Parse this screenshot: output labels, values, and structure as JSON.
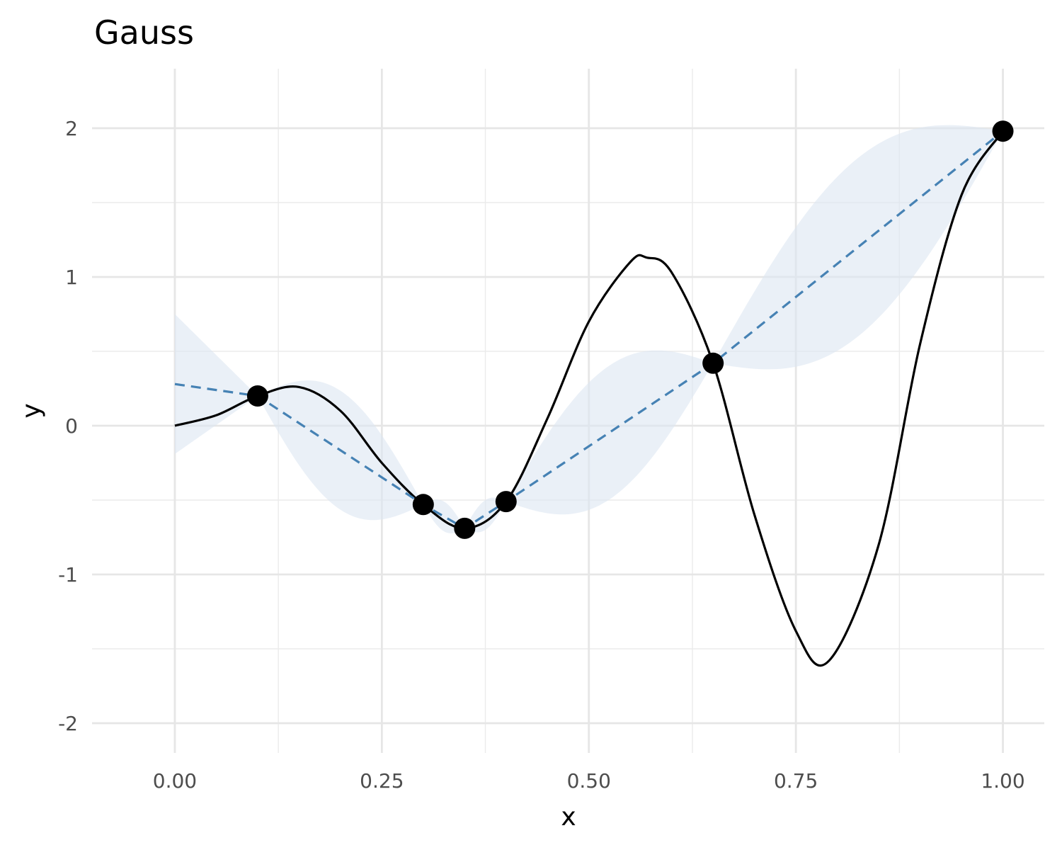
{
  "chart_data": {
    "type": "line",
    "title": "Gauss",
    "xlabel": "x",
    "ylabel": "y",
    "xlim": [
      -0.1,
      1.05
    ],
    "ylim": [
      -2.2,
      2.4
    ],
    "grid": true,
    "x_ticks": [
      0.0,
      0.25,
      0.5,
      0.75,
      1.0
    ],
    "x_tick_labels": [
      "0.00",
      "0.25",
      "0.50",
      "0.75",
      "1.00"
    ],
    "y_ticks": [
      -2,
      -1,
      0,
      1,
      2
    ],
    "y_tick_labels": [
      "-2",
      "-1",
      "0",
      "1",
      "2"
    ],
    "true_function": {
      "style": "solid",
      "color": "#000000",
      "x": [
        0.0,
        0.05,
        0.1,
        0.15,
        0.2,
        0.25,
        0.3,
        0.35,
        0.4,
        0.45,
        0.5,
        0.55,
        0.57,
        0.6,
        0.65,
        0.7,
        0.75,
        0.79,
        0.85,
        0.9,
        0.95,
        1.0
      ],
      "y": [
        0.0,
        0.07,
        0.2,
        0.26,
        0.1,
        -0.25,
        -0.53,
        -0.69,
        -0.51,
        0.05,
        0.7,
        1.1,
        1.13,
        1.03,
        0.42,
        -0.6,
        -1.38,
        -1.58,
        -0.8,
        0.55,
        1.55,
        1.98
      ]
    },
    "observations": {
      "x": [
        0.1,
        0.3,
        0.35,
        0.4,
        0.65,
        1.0
      ],
      "y": [
        0.2,
        -0.53,
        -0.69,
        -0.51,
        0.42,
        1.98
      ]
    },
    "interpolation": {
      "style": "dashed",
      "color": "#4682b4",
      "x": [
        0.0,
        0.1,
        0.3,
        0.35,
        0.4,
        0.65,
        1.0
      ],
      "y": [
        0.28,
        0.2,
        -0.53,
        -0.69,
        -0.51,
        0.42,
        1.98
      ]
    },
    "band_color": "#dce6f2",
    "band_segments": [
      {
        "from": 0.0,
        "to": 0.1,
        "width": 0.47
      },
      {
        "from": 0.1,
        "to": 0.3,
        "width": 0.4
      },
      {
        "from": 0.3,
        "to": 0.35,
        "width": 0.1
      },
      {
        "from": 0.35,
        "to": 0.4,
        "width": 0.1
      },
      {
        "from": 0.4,
        "to": 0.65,
        "width": 0.45
      },
      {
        "from": 0.65,
        "to": 1.0,
        "width": 0.6
      }
    ]
  }
}
